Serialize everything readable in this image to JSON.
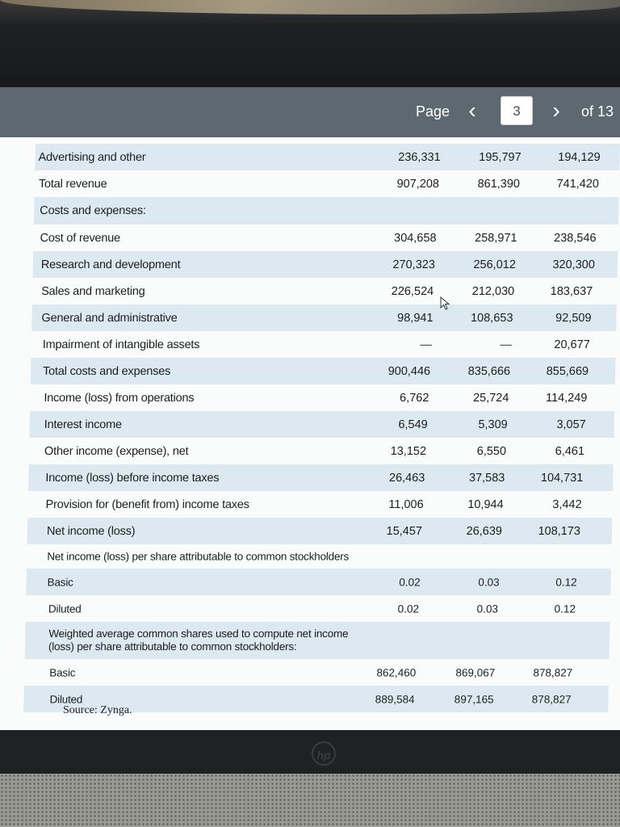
{
  "pager": {
    "page_label": "Page",
    "current_page": "3",
    "of_label": "of 13",
    "prev_icon": "‹",
    "next_icon": "›"
  },
  "table": {
    "rows": [
      {
        "label": "Advertising and other",
        "v1": "236,331",
        "v2": "195,797",
        "v3": "194,129",
        "shaded": true
      },
      {
        "label": "Total revenue",
        "v1": "907,208",
        "v2": "861,390",
        "v3": "741,420",
        "shaded": false
      },
      {
        "label": "Costs and expenses:",
        "v1": "",
        "v2": "",
        "v3": "",
        "shaded": true
      },
      {
        "label": "Cost of revenue",
        "v1": "304,658",
        "v2": "258,971",
        "v3": "238,546",
        "shaded": false
      },
      {
        "label": "Research and development",
        "v1": "270,323",
        "v2": "256,012",
        "v3": "320,300",
        "shaded": true
      },
      {
        "label": "Sales and marketing",
        "v1": "226,524",
        "v2": "212,030",
        "v3": "183,637",
        "shaded": false
      },
      {
        "label": "General and administrative",
        "v1": "98,941",
        "v2": "108,653",
        "v3": "92,509",
        "shaded": true
      },
      {
        "label": "Impairment of intangible assets",
        "v1": "—",
        "v2": "—",
        "v3": "20,677",
        "shaded": false
      },
      {
        "label": "Total costs and expenses",
        "v1": "900,446",
        "v2": "835,666",
        "v3": "855,669",
        "shaded": true
      },
      {
        "label": "Income (loss) from operations",
        "v1": "6,762",
        "v2": "25,724",
        "v3": "114,249",
        "shaded": false
      },
      {
        "label": "Interest income",
        "v1": "6,549",
        "v2": "5,309",
        "v3": "3,057",
        "shaded": true
      },
      {
        "label": "Other income (expense), net",
        "v1": "13,152",
        "v2": "6,550",
        "v3": "6,461",
        "shaded": false
      },
      {
        "label": "Income (loss) before income taxes",
        "v1": "26,463",
        "v2": "37,583",
        "v3": "104,731",
        "shaded": true
      },
      {
        "label": "Provision for (benefit from) income taxes",
        "v1": "11,006",
        "v2": "10,944",
        "v3": "3,442",
        "shaded": false
      },
      {
        "label": "Net income (loss)",
        "v1": "15,457",
        "v2": "26,639",
        "v3": "108,173",
        "shaded": true
      },
      {
        "label": "Net income (loss) per share attributable to common stockholders",
        "v1": "",
        "v2": "",
        "v3": "",
        "shaded": false
      },
      {
        "label": "Basic",
        "v1": "0.02",
        "v2": "0.03",
        "v3": "0.12",
        "shaded": true
      },
      {
        "label": "Diluted",
        "v1": "0.02",
        "v2": "0.03",
        "v3": "0.12",
        "shaded": false
      },
      {
        "label": "Weighted average common shares used to compute net income (loss) per share attributable to common stockholders:",
        "v1": "",
        "v2": "",
        "v3": "",
        "shaded": true
      },
      {
        "label": "Basic",
        "v1": "862,460",
        "v2": "869,067",
        "v3": "878,827",
        "shaded": false
      },
      {
        "label": "Diluted",
        "v1": "889,584",
        "v2": "897,165",
        "v3": "878,827",
        "shaded": true
      }
    ]
  },
  "source": "Source: Zynga.",
  "device": {
    "logo_text": "hp"
  }
}
